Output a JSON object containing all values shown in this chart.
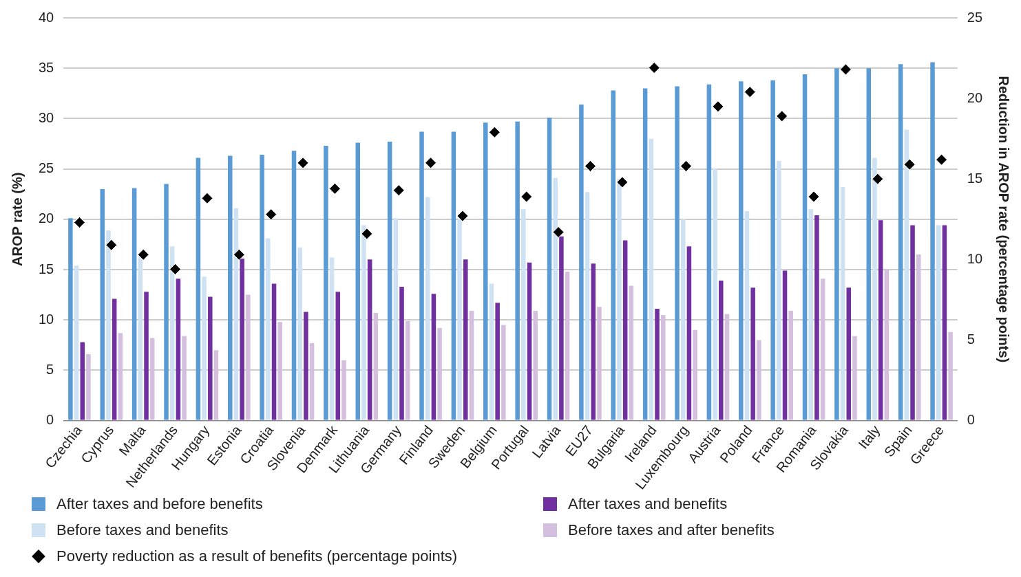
{
  "chart_data": {
    "type": "bar",
    "ylabel": "AROP rate (%)",
    "y2label": "Reduction in AROP rate (percentage points)",
    "categories": [
      "Czechia",
      "Cyprus",
      "Malta",
      "Netherlands",
      "Hungary",
      "Estonia",
      "Croatia",
      "Slovenia",
      "Denmark",
      "Lithuania",
      "Germany",
      "Finland",
      "Sweden",
      "Belgium",
      "Portugal",
      "Latvia",
      "EU27",
      "Bulgaria",
      "Ireland",
      "Luxembourg",
      "Austria",
      "Poland",
      "France",
      "Romania",
      "Slovakia",
      "Italy",
      "Spain",
      "Greece"
    ],
    "series": [
      {
        "name": "After taxes and before benefits",
        "color": "#5b9bd5",
        "values": [
          20.1,
          23.0,
          23.1,
          23.5,
          26.1,
          26.3,
          26.4,
          26.8,
          27.3,
          27.6,
          27.7,
          28.7,
          28.7,
          29.6,
          29.7,
          30.1,
          31.4,
          32.8,
          33.0,
          33.2,
          33.4,
          33.7,
          33.8,
          34.4,
          35.0,
          35.0,
          35.4,
          35.6
        ]
      },
      {
        "name": "Before taxes and benefits",
        "color": "#cfe2f3",
        "values": [
          15.4,
          18.9,
          16.3,
          17.3,
          14.3,
          21.1,
          18.1,
          17.2,
          16.2,
          19.4,
          20.1,
          22.2,
          20.0,
          13.6,
          21.0,
          24.1,
          22.7,
          24.0,
          28.0,
          20.0,
          25.0,
          20.8,
          25.8,
          21.0,
          23.2,
          26.1,
          28.9,
          19.4
        ]
      },
      {
        "name": "After taxes and benefits",
        "color": "#7030a0",
        "values": [
          7.8,
          12.1,
          12.8,
          14.1,
          12.3,
          16.1,
          13.6,
          10.8,
          12.8,
          16.0,
          13.3,
          12.6,
          16.0,
          11.7,
          15.7,
          18.3,
          15.6,
          17.9,
          11.1,
          17.3,
          13.9,
          13.2,
          14.9,
          20.4,
          13.2,
          19.9,
          19.4,
          19.4
        ]
      },
      {
        "name": "Before taxes and after benefits",
        "color": "#d5bfdf",
        "values": [
          6.6,
          8.7,
          8.2,
          8.4,
          7.0,
          12.5,
          9.8,
          7.7,
          6.0,
          10.7,
          9.9,
          9.2,
          10.9,
          9.5,
          10.9,
          14.8,
          11.3,
          13.4,
          10.5,
          9.0,
          10.6,
          8.0,
          10.9,
          14.1,
          8.4,
          15.0,
          16.5,
          8.8
        ]
      },
      {
        "name": "Poverty reduction as a result of benefits (percentage points)",
        "type": "scatter",
        "axis": "y2",
        "color": "#000000",
        "marker": "diamond",
        "values": [
          12.3,
          10.9,
          10.3,
          9.4,
          13.8,
          10.3,
          12.8,
          16.0,
          14.4,
          11.6,
          14.3,
          16.0,
          12.7,
          17.9,
          13.9,
          11.7,
          15.8,
          14.8,
          21.9,
          15.8,
          19.5,
          20.4,
          18.9,
          13.9,
          21.8,
          15.0,
          15.9,
          16.2
        ]
      }
    ],
    "ylim": [
      0,
      40
    ],
    "yticks": [
      0,
      5,
      10,
      15,
      20,
      25,
      30,
      35,
      40
    ],
    "y2lim": [
      0,
      25
    ],
    "y2ticks": [
      0,
      5,
      10,
      15,
      20,
      25
    ],
    "grid": "y",
    "legend": "bottom"
  }
}
